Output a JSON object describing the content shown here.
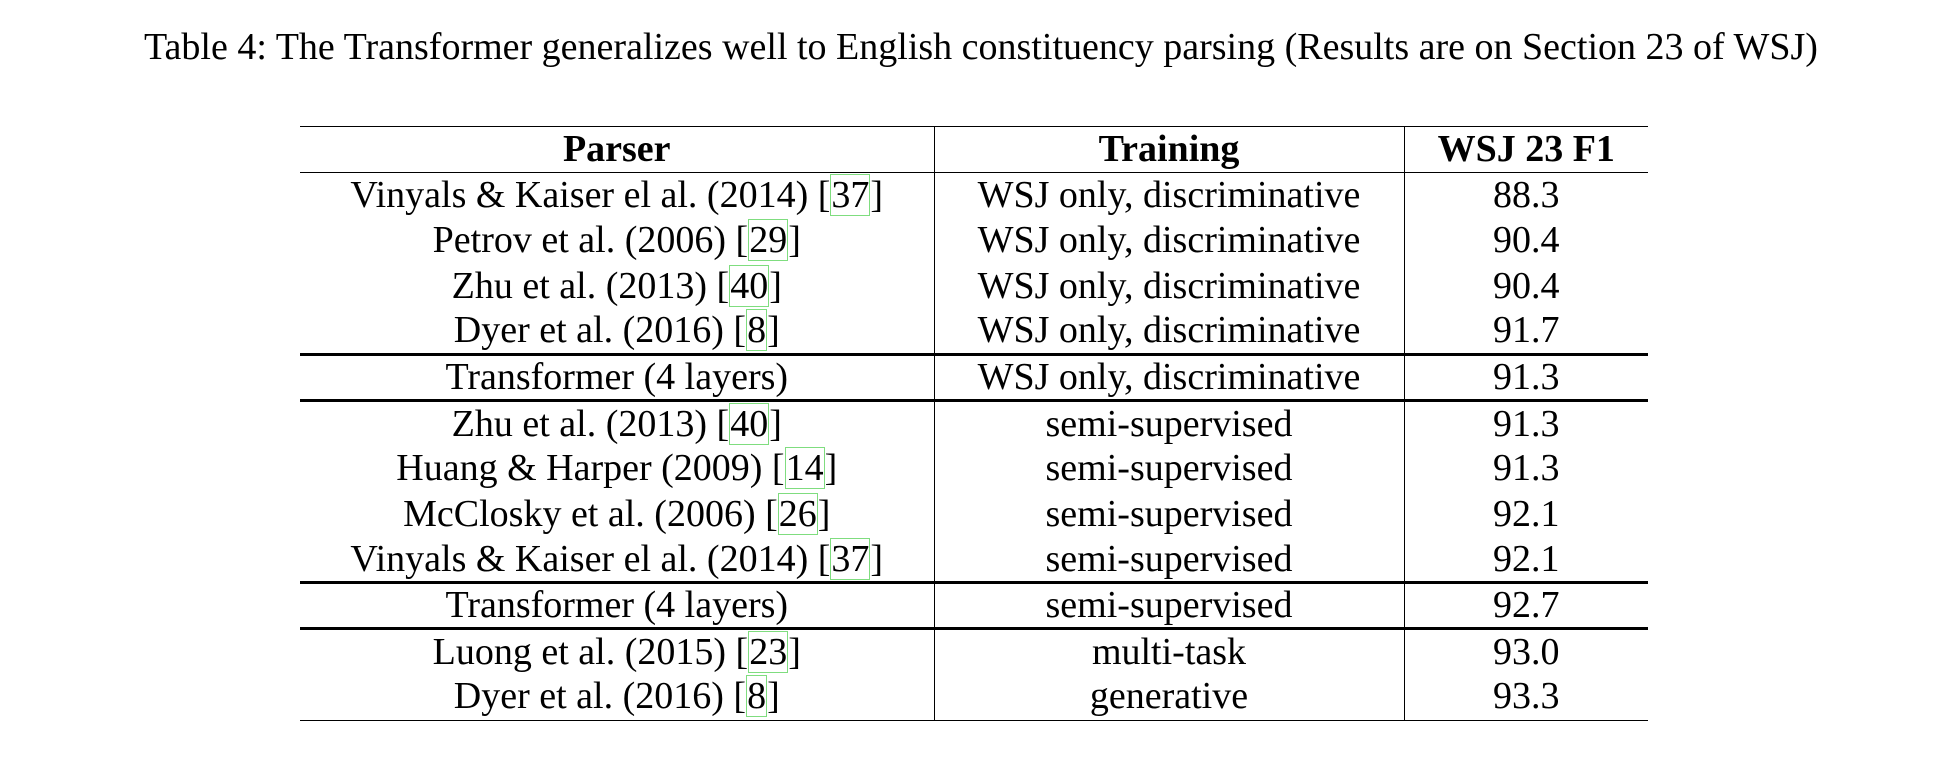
{
  "caption": "Table 4: The Transformer generalizes well to English constituency parsing (Results are on Section 23 of WSJ)",
  "table": {
    "headers": [
      "Parser",
      "Training",
      "WSJ 23 F1"
    ],
    "rows": [
      {
        "parser": "Vinyals & Kaiser el al. (2014) [",
        "ref": "37",
        "close": "]",
        "training": "WSJ only, discriminative",
        "f1": "88.3"
      },
      {
        "parser": "Petrov et al. (2006) [",
        "ref": "29",
        "close": "]",
        "training": "WSJ only, discriminative",
        "f1": "90.4"
      },
      {
        "parser": "Zhu et al. (2013) [",
        "ref": "40",
        "close": "]",
        "training": "WSJ only, discriminative",
        "f1": "90.4"
      },
      {
        "parser": "Dyer et al. (2016) [",
        "ref": "8",
        "close": "]",
        "training": "WSJ only, discriminative",
        "f1": "91.7"
      },
      {
        "parser": "Transformer (4 layers)",
        "ref": "",
        "close": "",
        "training": "WSJ only, discriminative",
        "f1": "91.3"
      },
      {
        "parser": "Zhu et al. (2013) [",
        "ref": "40",
        "close": "]",
        "training": "semi-supervised",
        "f1": "91.3"
      },
      {
        "parser": "Huang & Harper (2009) [",
        "ref": "14",
        "close": "]",
        "training": "semi-supervised",
        "f1": "91.3"
      },
      {
        "parser": "McClosky et al. (2006) [",
        "ref": "26",
        "close": "]",
        "training": "semi-supervised",
        "f1": "92.1"
      },
      {
        "parser": "Vinyals & Kaiser el al. (2014) [",
        "ref": "37",
        "close": "]",
        "training": "semi-supervised",
        "f1": "92.1"
      },
      {
        "parser": "Transformer (4 layers)",
        "ref": "",
        "close": "",
        "training": "semi-supervised",
        "f1": "92.7"
      },
      {
        "parser": "Luong et al. (2015) [",
        "ref": "23",
        "close": "]",
        "training": "multi-task",
        "f1": "93.0"
      },
      {
        "parser": "Dyer et al. (2016) [",
        "ref": "8",
        "close": "]",
        "training": "generative",
        "f1": "93.3"
      }
    ]
  },
  "colors": {
    "citation_box": "#7fdd7f",
    "text": "#000000"
  }
}
